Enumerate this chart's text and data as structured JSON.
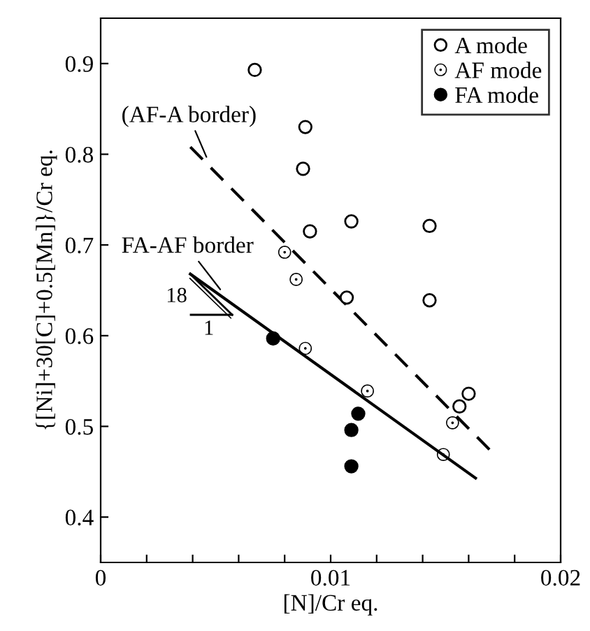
{
  "chart_data": {
    "type": "scatter",
    "xlabel": "[N]/Cr eq.",
    "ylabel": "{[Ni]+30[C]+0.5[Mn]}/Cr eq.",
    "xlim": [
      0,
      0.02
    ],
    "ylim": [
      0.35,
      0.95
    ],
    "xticks": [
      0,
      {
        "value": 0.002,
        "label": null
      },
      {
        "value": 0.004,
        "label": null
      },
      {
        "value": 0.006,
        "label": null
      },
      {
        "value": 0.008,
        "label": null
      },
      {
        "value": 0.01,
        "label": "0.01"
      },
      {
        "value": 0.012,
        "label": null
      },
      {
        "value": 0.014,
        "label": null
      },
      {
        "value": 0.016,
        "label": null
      },
      {
        "value": 0.018,
        "label": null
      },
      {
        "value": 0.02,
        "label": "0.02"
      }
    ],
    "yticks": [
      {
        "value": 0.4,
        "label": "0.4"
      },
      {
        "value": 0.5,
        "label": "0.5"
      },
      {
        "value": 0.6,
        "label": "0.6"
      },
      {
        "value": 0.7,
        "label": "0.7"
      },
      {
        "value": 0.8,
        "label": "0.8"
      },
      {
        "value": 0.9,
        "label": "0.9"
      }
    ],
    "grid": false,
    "legend": "top right",
    "marker": "circle",
    "series": [
      {
        "name": "A mode",
        "color": "#000000",
        "x": [
          0.0067,
          0.0089,
          0.0088,
          0.0091,
          0.0109,
          0.0143,
          0.0107,
          0.0143,
          0.0156,
          0.016
        ],
        "values": [
          0.893,
          0.83,
          0.784,
          0.715,
          0.726,
          0.721,
          0.642,
          0.639,
          0.522,
          0.536
        ]
      },
      {
        "name": "AF mode",
        "color": "#000000",
        "x": [
          0.008,
          0.0085,
          0.0089,
          0.0116,
          0.0153,
          0.0149
        ],
        "values": [
          0.692,
          0.662,
          0.586,
          0.539,
          0.504,
          0.469
        ]
      },
      {
        "name": "FA mode",
        "color": "#000000",
        "x": [
          0.0075,
          0.0112,
          0.0109,
          0.0109
        ],
        "values": [
          0.597,
          0.514,
          0.496,
          0.456
        ]
      },
      {
        "type": "line",
        "color": "#000000",
        "line_style": "dashed",
        "marker": "none",
        "x": [
          0.0039,
          0.017
        ],
        "values": [
          0.808,
          0.472
        ]
      },
      {
        "type": "line",
        "color": "#000000",
        "line_style": "solid",
        "marker": "none",
        "x": [
          0.0039,
          0.0163
        ],
        "values": [
          0.668,
          0.443
        ]
      }
    ],
    "annotations": [
      {
        "text": "(AF-A border)",
        "x": 0.0046,
        "y": 0.797
      },
      {
        "text": "FA-AF border",
        "x": 0.0052,
        "y": 0.651
      },
      "18",
      "1"
    ]
  }
}
